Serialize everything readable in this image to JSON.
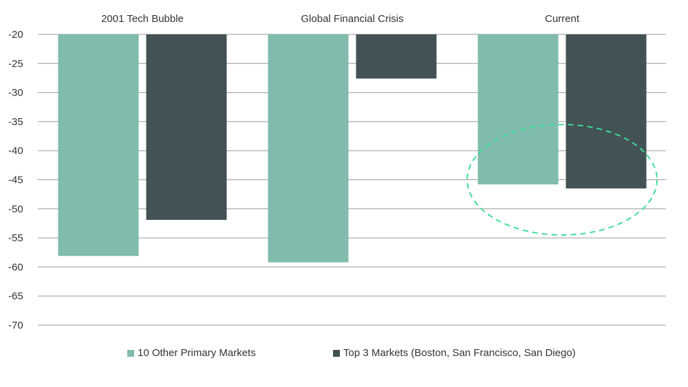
{
  "chart_data": {
    "type": "bar",
    "categories": [
      "2001 Tech Bubble",
      "Global Financial Crisis",
      "Current"
    ],
    "series": [
      {
        "name": "10 Other Primary Markets",
        "values": [
          -58.1,
          -59.2,
          -45.8
        ],
        "color": "#80bbad"
      },
      {
        "name": "Top 3 Markets (Boston, San Francisco, San Diego)",
        "values": [
          -51.9,
          -27.6,
          -46.5
        ],
        "color": "#435254"
      }
    ],
    "ylim": [
      -70,
      -20
    ],
    "yticks": [
      -20,
      -25,
      -30,
      -35,
      -40,
      -45,
      -50,
      -55,
      -60,
      -65,
      -70
    ],
    "bar_baseline": -20,
    "grid": true,
    "legend_position": "bottom-center",
    "annotation": {
      "shape": "dashed-ellipse",
      "category": "Current",
      "y_center": -45,
      "y_range": [
        -54.5,
        -35.5
      ],
      "color": "#3ddc97"
    }
  }
}
